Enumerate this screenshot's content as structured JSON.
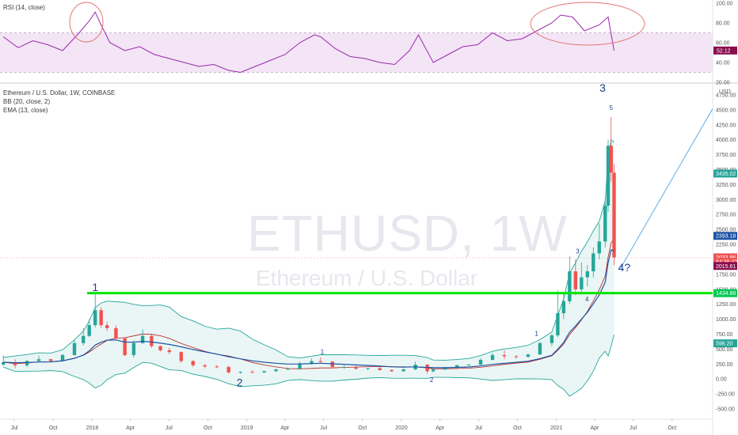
{
  "rsi_panel": {
    "title": "RSI (14, close)",
    "ticks": [
      "100.00",
      "80.00",
      "60.00",
      "40.00",
      "20.00"
    ],
    "current_label": "52.12",
    "current_value": 52.12,
    "band_upper": 70,
    "band_lower": 30,
    "line_color": "#9c27b0",
    "band_color": "#f3e5f5"
  },
  "main_panel": {
    "symbol_title": "Ethereum / U.S. Dollar, 1W, COINBASE",
    "bb_label": "BB (20, close, 2)",
    "ema_label": "EMA (13, close)",
    "currency": "USD",
    "watermark_main": "ETHUSD, 1W",
    "watermark_sub": "Ethereum / U.S. Dollar",
    "price_ticks": [
      "4750.00",
      "4500.00",
      "4250.00",
      "4000.00",
      "3750.00",
      "3500.00",
      "3250.00",
      "3000.00",
      "2750.00",
      "2500.00",
      "2250.00",
      "2000.00",
      "1750.00",
      "1500.00",
      "1250.00",
      "1000.00",
      "750.00",
      "500.00",
      "250.00",
      "0.00",
      "-250.00",
      "-500.00"
    ],
    "price_tags": [
      {
        "label": "3435.02",
        "value": 3435.02,
        "color": "#26a69a"
      },
      {
        "label": "2393.18",
        "value": 2393.18,
        "color": "#1e53a5"
      },
      {
        "label": "2033.96",
        "value": 2033.96,
        "color": "#ef5350"
      },
      {
        "label": "84:36:42",
        "value": 1960,
        "color": "#ef5350"
      },
      {
        "label": "2015.61",
        "value": 1890,
        "color": "#880e4f"
      },
      {
        "label": "1434.88",
        "value": 1434.88,
        "color": "#00c853"
      },
      {
        "label": "596.20",
        "value": 596.2,
        "color": "#26a69a"
      }
    ],
    "green_level": 1434.88,
    "colors": {
      "up": "#26a69a",
      "down": "#ef5350",
      "bb": "#26a69a",
      "bb_fill": "#e0f2f1",
      "ema": "#1e53a5",
      "green": "#00e600",
      "trend": "#4fa3e0"
    }
  },
  "wave_labels": [
    {
      "text": "1",
      "x": "2018-01-08",
      "y": 1470,
      "size": "big"
    },
    {
      "text": "2",
      "x": "2018-12-15",
      "y": -120,
      "size": "big"
    },
    {
      "text": "3",
      "x": "2021-04-20",
      "y": 4800,
      "size": "big"
    },
    {
      "text": "4?",
      "x": "2021-06-10",
      "y": 1800,
      "size": "big"
    },
    {
      "text": "1",
      "x": "2019-06-28",
      "y": 420,
      "size": "small"
    },
    {
      "text": "2",
      "x": "2020-03-12",
      "y": -50,
      "size": "small"
    },
    {
      "text": "3",
      "x": "2021-02-20",
      "y": 2100,
      "size": "small"
    },
    {
      "text": "4",
      "x": "2021-03-14",
      "y": 1300,
      "size": "small"
    },
    {
      "text": "5",
      "x": "2021-05-10",
      "y": 4500,
      "size": "small"
    },
    {
      "text": "1",
      "x": "2020-11-15",
      "y": 720,
      "size": "small"
    }
  ],
  "time_axis": [
    "Jul",
    "Oct",
    "2018",
    "Apr",
    "Jul",
    "Oct",
    "2019",
    "Apr",
    "Jul",
    "Oct",
    "2020",
    "Apr",
    "Jul",
    "Oct",
    "2021",
    "Apr",
    "Jul",
    "Oct"
  ],
  "chart_data": [
    {
      "type": "line",
      "title": "RSI (14, close)",
      "ylim": [
        20,
        100
      ],
      "x": [
        "2017-06-05",
        "2017-07-10",
        "2017-08-14",
        "2017-09-18",
        "2017-10-23",
        "2017-11-27",
        "2017-12-25",
        "2018-01-08",
        "2018-01-22",
        "2018-02-12",
        "2018-03-19",
        "2018-04-23",
        "2018-05-28",
        "2018-07-02",
        "2018-08-06",
        "2018-09-10",
        "2018-10-15",
        "2018-11-19",
        "2018-12-17",
        "2019-01-21",
        "2019-02-25",
        "2019-04-01",
        "2019-05-06",
        "2019-06-10",
        "2019-06-24",
        "2019-07-29",
        "2019-09-02",
        "2019-10-07",
        "2019-11-11",
        "2019-12-16",
        "2020-01-20",
        "2020-02-10",
        "2020-03-16",
        "2020-04-20",
        "2020-05-25",
        "2020-06-29",
        "2020-08-03",
        "2020-09-07",
        "2020-10-12",
        "2020-11-16",
        "2020-12-21",
        "2021-01-11",
        "2021-02-08",
        "2021-03-08",
        "2021-04-12",
        "2021-05-03",
        "2021-05-17"
      ],
      "values": [
        66,
        55,
        62,
        58,
        52,
        68,
        82,
        91,
        78,
        60,
        52,
        56,
        48,
        44,
        40,
        36,
        38,
        32,
        30,
        36,
        42,
        48,
        60,
        68,
        66,
        54,
        46,
        44,
        40,
        38,
        52,
        68,
        40,
        48,
        56,
        58,
        70,
        62,
        64,
        72,
        80,
        88,
        86,
        72,
        78,
        86,
        52
      ]
    },
    {
      "type": "candlestick",
      "title": "Ethereum / U.S. Dollar, 1W, COINBASE",
      "ylim": [
        -600,
        4800
      ],
      "x": [
        "2017-06-05",
        "2017-07-03",
        "2017-07-31",
        "2017-08-28",
        "2017-09-25",
        "2017-10-23",
        "2017-11-20",
        "2017-12-11",
        "2017-12-25",
        "2018-01-08",
        "2018-01-22",
        "2018-02-05",
        "2018-02-26",
        "2018-03-19",
        "2018-04-09",
        "2018-04-30",
        "2018-05-21",
        "2018-06-11",
        "2018-07-02",
        "2018-07-30",
        "2018-08-27",
        "2018-09-24",
        "2018-10-22",
        "2018-11-19",
        "2018-12-17",
        "2019-01-14",
        "2019-02-11",
        "2019-03-11",
        "2019-04-08",
        "2019-05-06",
        "2019-06-03",
        "2019-06-24",
        "2019-07-22",
        "2019-08-19",
        "2019-09-16",
        "2019-10-14",
        "2019-11-11",
        "2019-12-09",
        "2020-01-06",
        "2020-02-03",
        "2020-03-02",
        "2020-03-16",
        "2020-04-13",
        "2020-05-11",
        "2020-06-08",
        "2020-07-06",
        "2020-08-03",
        "2020-08-31",
        "2020-09-28",
        "2020-10-26",
        "2020-11-23",
        "2020-12-21",
        "2021-01-04",
        "2021-01-18",
        "2021-02-01",
        "2021-02-15",
        "2021-03-01",
        "2021-03-15",
        "2021-03-29",
        "2021-04-12",
        "2021-04-26",
        "2021-05-03",
        "2021-05-10",
        "2021-05-17"
      ],
      "open": [
        240,
        280,
        230,
        300,
        330,
        300,
        400,
        600,
        720,
        900,
        1150,
        900,
        850,
        680,
        400,
        600,
        720,
        550,
        480,
        450,
        300,
        230,
        210,
        200,
        110,
        120,
        110,
        130,
        160,
        170,
        260,
        300,
        290,
        200,
        200,
        170,
        180,
        150,
        130,
        160,
        240,
        130,
        160,
        190,
        230,
        240,
        320,
        400,
        380,
        370,
        410,
        600,
        730,
        1100,
        1300,
        1800,
        1500,
        1700,
        1800,
        2100,
        2300,
        2900,
        3900,
        3450
      ],
      "close": [
        280,
        230,
        300,
        330,
        300,
        400,
        600,
        720,
        900,
        1150,
        900,
        850,
        680,
        400,
        600,
        720,
        550,
        480,
        450,
        300,
        230,
        210,
        200,
        110,
        120,
        110,
        130,
        160,
        170,
        260,
        300,
        290,
        200,
        200,
        170,
        180,
        150,
        130,
        160,
        240,
        130,
        160,
        190,
        230,
        240,
        320,
        400,
        380,
        370,
        410,
        600,
        730,
        1100,
        1300,
        1800,
        1500,
        1700,
        1800,
        2100,
        2300,
        2900,
        3900,
        3450,
        2033.96
      ],
      "high": [
        400,
        330,
        320,
        390,
        340,
        420,
        650,
        850,
        1000,
        1420,
        1200,
        960,
        900,
        700,
        650,
        830,
        760,
        560,
        520,
        460,
        310,
        250,
        230,
        220,
        130,
        150,
        140,
        170,
        190,
        290,
        340,
        360,
        300,
        230,
        220,
        190,
        200,
        160,
        180,
        290,
        250,
        170,
        200,
        240,
        250,
        350,
        440,
        480,
        400,
        420,
        620,
        750,
        1480,
        1450,
        2050,
        2000,
        1950,
        1900,
        2200,
        2600,
        3000,
        4000,
        4380,
        3600
      ],
      "low": [
        220,
        180,
        200,
        280,
        280,
        290,
        390,
        560,
        700,
        860,
        850,
        800,
        650,
        380,
        360,
        590,
        520,
        460,
        420,
        270,
        200,
        180,
        180,
        90,
        85,
        100,
        100,
        120,
        150,
        160,
        240,
        270,
        190,
        170,
        160,
        150,
        140,
        120,
        120,
        150,
        90,
        110,
        150,
        180,
        220,
        230,
        310,
        330,
        340,
        360,
        400,
        550,
        700,
        1000,
        1250,
        1400,
        1450,
        1550,
        1700,
        2000,
        2200,
        2800,
        3300,
        1900
      ]
    }
  ]
}
